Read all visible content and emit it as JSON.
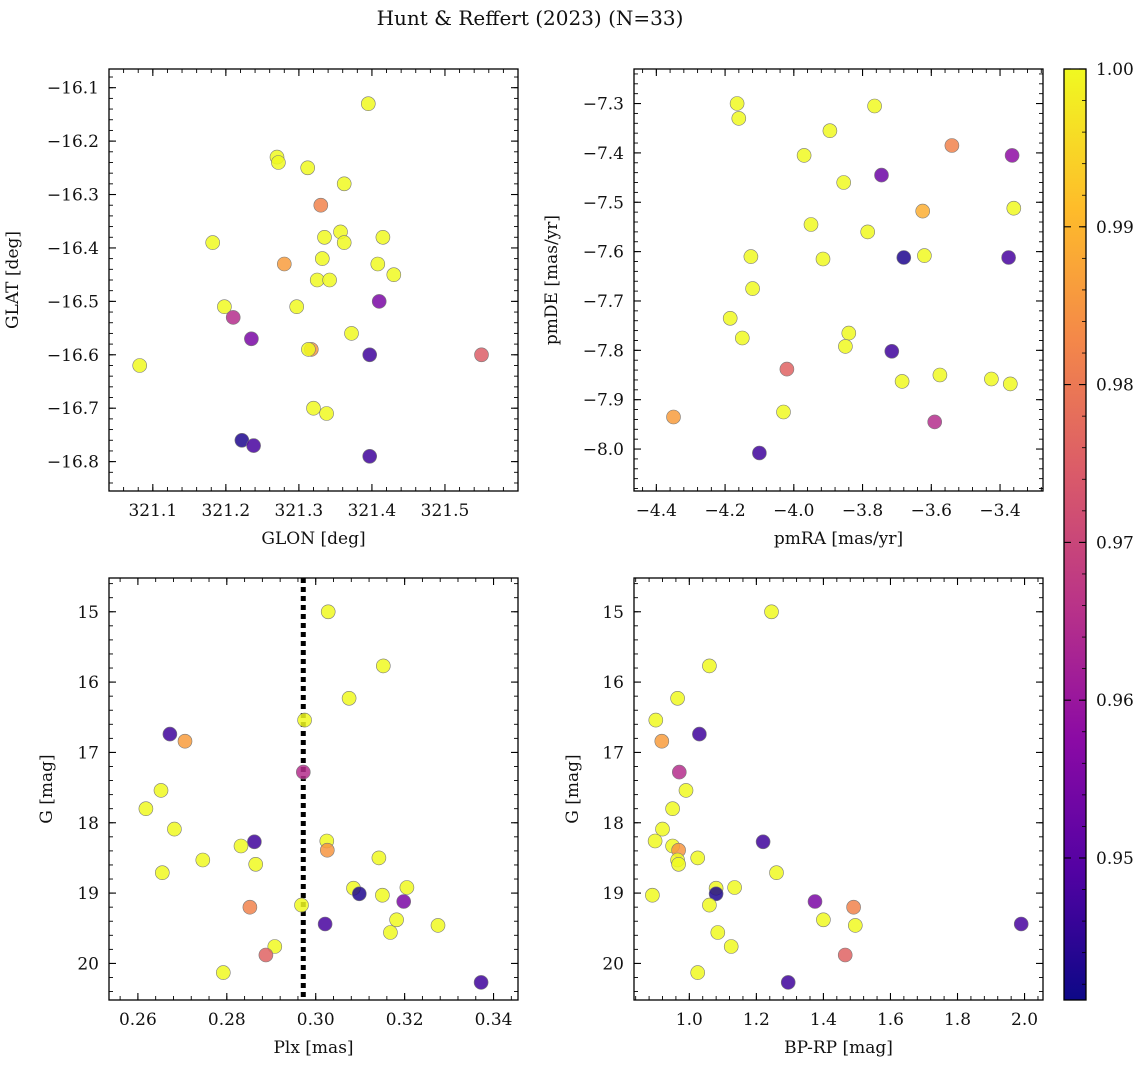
{
  "title": "Hunt & Reffert (2023) (N=33)",
  "colorbar": {
    "cmap": "plasma",
    "range": [
      0.941,
      1.0
    ],
    "ticks": [
      0.95,
      0.96,
      0.97,
      0.98,
      0.99,
      1.0
    ],
    "tick_labels": [
      "0.95",
      "0.96",
      "0.97",
      "0.98",
      "0.99",
      "1.00"
    ]
  },
  "chart_data": [
    {
      "type": "scatter",
      "title": "",
      "xlabel": "GLON [deg]",
      "ylabel": "GLAT [deg]",
      "xlim": [
        321.04,
        321.6
      ],
      "ylim": [
        -16.855,
        -16.065
      ],
      "y_inverted": false,
      "xticks": [
        321.1,
        321.2,
        321.3,
        321.4,
        321.5
      ],
      "xtick_labels": [
        "321.1",
        "321.2",
        "321.3",
        "321.4",
        "321.5"
      ],
      "yticks": [
        -16.8,
        -16.7,
        -16.6,
        -16.5,
        -16.4,
        -16.3,
        -16.2,
        -16.1
      ],
      "ytick_labels": [
        "−16.8",
        "−16.7",
        "−16.6",
        "−16.5",
        "−16.4",
        "−16.3",
        "−16.2",
        "−16.1"
      ],
      "points": [
        {
          "x": 321.395,
          "y": -16.13,
          "c": 1.0
        },
        {
          "x": 321.27,
          "y": -16.23,
          "c": 1.0
        },
        {
          "x": 321.272,
          "y": -16.24,
          "c": 1.0
        },
        {
          "x": 321.312,
          "y": -16.25,
          "c": 1.0
        },
        {
          "x": 321.362,
          "y": -16.28,
          "c": 1.0
        },
        {
          "x": 321.33,
          "y": -16.32,
          "c": 0.982
        },
        {
          "x": 321.357,
          "y": -16.37,
          "c": 1.0
        },
        {
          "x": 321.335,
          "y": -16.38,
          "c": 1.0
        },
        {
          "x": 321.415,
          "y": -16.38,
          "c": 1.0
        },
        {
          "x": 321.182,
          "y": -16.39,
          "c": 1.0
        },
        {
          "x": 321.362,
          "y": -16.39,
          "c": 1.0
        },
        {
          "x": 321.332,
          "y": -16.42,
          "c": 1.0
        },
        {
          "x": 321.28,
          "y": -16.43,
          "c": 0.986
        },
        {
          "x": 321.408,
          "y": -16.43,
          "c": 1.0
        },
        {
          "x": 321.43,
          "y": -16.45,
          "c": 1.0
        },
        {
          "x": 321.325,
          "y": -16.46,
          "c": 1.0
        },
        {
          "x": 321.342,
          "y": -16.46,
          "c": 1.0
        },
        {
          "x": 321.41,
          "y": -16.5,
          "c": 0.955
        },
        {
          "x": 321.198,
          "y": -16.51,
          "c": 1.0
        },
        {
          "x": 321.297,
          "y": -16.51,
          "c": 1.0
        },
        {
          "x": 321.21,
          "y": -16.53,
          "c": 0.965
        },
        {
          "x": 321.372,
          "y": -16.56,
          "c": 1.0
        },
        {
          "x": 321.235,
          "y": -16.57,
          "c": 0.955
        },
        {
          "x": 321.317,
          "y": -16.59,
          "c": 0.985
        },
        {
          "x": 321.313,
          "y": -16.59,
          "c": 1.0
        },
        {
          "x": 321.397,
          "y": -16.6,
          "c": 0.947
        },
        {
          "x": 321.55,
          "y": -16.6,
          "c": 0.975
        },
        {
          "x": 321.082,
          "y": -16.62,
          "c": 1.0
        },
        {
          "x": 321.32,
          "y": -16.7,
          "c": 1.0
        },
        {
          "x": 321.338,
          "y": -16.71,
          "c": 1.0
        },
        {
          "x": 321.222,
          "y": -16.76,
          "c": 0.943
        },
        {
          "x": 321.238,
          "y": -16.77,
          "c": 0.948
        },
        {
          "x": 321.397,
          "y": -16.79,
          "c": 0.947
        }
      ]
    },
    {
      "type": "scatter",
      "title": "",
      "xlabel": "pmRA [mas/yr]",
      "ylabel": "pmDE [mas/yr]",
      "xlim": [
        -4.465,
        -3.275
      ],
      "ylim": [
        -8.085,
        -7.23
      ],
      "y_inverted": false,
      "xticks": [
        -4.4,
        -4.2,
        -4.0,
        -3.8,
        -3.6,
        -3.4
      ],
      "xtick_labels": [
        "−4.4",
        "−4.2",
        "−4.0",
        "−3.8",
        "−3.6",
        "−3.4"
      ],
      "yticks": [
        -8.0,
        -7.9,
        -7.8,
        -7.7,
        -7.6,
        -7.5,
        -7.4,
        -7.3
      ],
      "ytick_labels": [
        "−8.0",
        "−7.9",
        "−7.8",
        "−7.7",
        "−7.6",
        "−7.5",
        "−7.4",
        "−7.3"
      ],
      "points": [
        {
          "x": -4.165,
          "y": -7.3,
          "c": 1.0
        },
        {
          "x": -3.765,
          "y": -7.305,
          "c": 1.0
        },
        {
          "x": -4.16,
          "y": -7.33,
          "c": 1.0
        },
        {
          "x": -3.895,
          "y": -7.355,
          "c": 1.0
        },
        {
          "x": -3.54,
          "y": -7.385,
          "c": 0.982
        },
        {
          "x": -3.97,
          "y": -7.405,
          "c": 1.0
        },
        {
          "x": -3.365,
          "y": -7.405,
          "c": 0.958
        },
        {
          "x": -3.745,
          "y": -7.445,
          "c": 0.953
        },
        {
          "x": -3.855,
          "y": -7.46,
          "c": 1.0
        },
        {
          "x": -3.36,
          "y": -7.512,
          "c": 1.0
        },
        {
          "x": -3.625,
          "y": -7.518,
          "c": 0.989
        },
        {
          "x": -3.95,
          "y": -7.545,
          "c": 1.0
        },
        {
          "x": -3.785,
          "y": -7.56,
          "c": 1.0
        },
        {
          "x": -4.125,
          "y": -7.61,
          "c": 1.0
        },
        {
          "x": -3.915,
          "y": -7.615,
          "c": 1.0
        },
        {
          "x": -3.62,
          "y": -7.608,
          "c": 1.0
        },
        {
          "x": -3.68,
          "y": -7.612,
          "c": 0.943
        },
        {
          "x": -3.375,
          "y": -7.612,
          "c": 0.948
        },
        {
          "x": -4.12,
          "y": -7.675,
          "c": 1.0
        },
        {
          "x": -4.185,
          "y": -7.735,
          "c": 1.0
        },
        {
          "x": -3.84,
          "y": -7.765,
          "c": 1.0
        },
        {
          "x": -4.15,
          "y": -7.775,
          "c": 1.0
        },
        {
          "x": -3.85,
          "y": -7.792,
          "c": 1.0
        },
        {
          "x": -3.715,
          "y": -7.802,
          "c": 0.947
        },
        {
          "x": -4.02,
          "y": -7.838,
          "c": 0.976
        },
        {
          "x": -3.575,
          "y": -7.85,
          "c": 1.0
        },
        {
          "x": -3.425,
          "y": -7.858,
          "c": 1.0
        },
        {
          "x": -3.685,
          "y": -7.863,
          "c": 1.0
        },
        {
          "x": -3.37,
          "y": -7.868,
          "c": 1.0
        },
        {
          "x": -4.03,
          "y": -7.925,
          "c": 1.0
        },
        {
          "x": -4.35,
          "y": -7.935,
          "c": 0.986
        },
        {
          "x": -3.59,
          "y": -7.945,
          "c": 0.965
        },
        {
          "x": -4.1,
          "y": -8.008,
          "c": 0.947
        }
      ]
    },
    {
      "type": "scatter",
      "title": "",
      "xlabel": "Plx [mas]",
      "ylabel": "G [mag]",
      "xlim": [
        0.2535,
        0.3455
      ],
      "ylim": [
        20.52,
        14.52
      ],
      "y_inverted": true,
      "xticks": [
        0.26,
        0.28,
        0.3,
        0.32,
        0.34
      ],
      "xtick_labels": [
        "0.26",
        "0.28",
        "0.30",
        "0.32",
        "0.34"
      ],
      "yticks": [
        15,
        16,
        17,
        18,
        19,
        20
      ],
      "ytick_labels": [
        "15",
        "16",
        "17",
        "18",
        "19",
        "20"
      ],
      "vline": {
        "x": 0.2972,
        "style": "dotted",
        "color": "#000000"
      },
      "points": [
        {
          "x": 0.3028,
          "y": 15.0,
          "c": 1.0
        },
        {
          "x": 0.3152,
          "y": 15.77,
          "c": 1.0
        },
        {
          "x": 0.3075,
          "y": 16.23,
          "c": 1.0
        },
        {
          "x": 0.2975,
          "y": 16.54,
          "c": 1.0
        },
        {
          "x": 0.2672,
          "y": 16.74,
          "c": 0.947
        },
        {
          "x": 0.2706,
          "y": 16.84,
          "c": 0.986
        },
        {
          "x": 0.2972,
          "y": 17.28,
          "c": 0.965
        },
        {
          "x": 0.2652,
          "y": 17.54,
          "c": 1.0
        },
        {
          "x": 0.2618,
          "y": 17.8,
          "c": 1.0
        },
        {
          "x": 0.2682,
          "y": 18.09,
          "c": 1.0
        },
        {
          "x": 0.3025,
          "y": 18.26,
          "c": 1.0
        },
        {
          "x": 0.2862,
          "y": 18.27,
          "c": 0.947
        },
        {
          "x": 0.2832,
          "y": 18.33,
          "c": 1.0
        },
        {
          "x": 0.3026,
          "y": 18.39,
          "c": 0.985
        },
        {
          "x": 0.3142,
          "y": 18.5,
          "c": 1.0
        },
        {
          "x": 0.2746,
          "y": 18.53,
          "c": 1.0
        },
        {
          "x": 0.2865,
          "y": 18.59,
          "c": 1.0
        },
        {
          "x": 0.2655,
          "y": 18.71,
          "c": 1.0
        },
        {
          "x": 0.3085,
          "y": 18.93,
          "c": 1.0
        },
        {
          "x": 0.3205,
          "y": 18.92,
          "c": 1.0
        },
        {
          "x": 0.3098,
          "y": 19.01,
          "c": 0.943
        },
        {
          "x": 0.315,
          "y": 19.03,
          "c": 1.0
        },
        {
          "x": 0.3198,
          "y": 19.12,
          "c": 0.955
        },
        {
          "x": 0.2968,
          "y": 19.17,
          "c": 1.0
        },
        {
          "x": 0.2852,
          "y": 19.2,
          "c": 0.982
        },
        {
          "x": 0.3182,
          "y": 19.38,
          "c": 1.0
        },
        {
          "x": 0.3021,
          "y": 19.44,
          "c": 0.948
        },
        {
          "x": 0.3275,
          "y": 19.46,
          "c": 1.0
        },
        {
          "x": 0.3168,
          "y": 19.56,
          "c": 1.0
        },
        {
          "x": 0.2908,
          "y": 19.76,
          "c": 1.0
        },
        {
          "x": 0.2888,
          "y": 19.88,
          "c": 0.976
        },
        {
          "x": 0.2792,
          "y": 20.13,
          "c": 1.0
        },
        {
          "x": 0.3372,
          "y": 20.27,
          "c": 0.947
        }
      ]
    },
    {
      "type": "scatter",
      "title": "",
      "xlabel": "BP-RP [mag]",
      "ylabel": "G [mag]",
      "xlim": [
        0.835,
        2.055
      ],
      "ylim": [
        20.52,
        14.52
      ],
      "y_inverted": true,
      "xticks": [
        1.0,
        1.2,
        1.4,
        1.6,
        1.8,
        2.0
      ],
      "xtick_labels": [
        "1.0",
        "1.2",
        "1.4",
        "1.6",
        "1.8",
        "2.0"
      ],
      "yticks": [
        15,
        16,
        17,
        18,
        19,
        20
      ],
      "ytick_labels": [
        "15",
        "16",
        "17",
        "18",
        "19",
        "20"
      ],
      "points": [
        {
          "x": 1.245,
          "y": 15.0,
          "c": 1.0
        },
        {
          "x": 1.06,
          "y": 15.77,
          "c": 1.0
        },
        {
          "x": 0.965,
          "y": 16.23,
          "c": 1.0
        },
        {
          "x": 0.9,
          "y": 16.54,
          "c": 1.0
        },
        {
          "x": 1.03,
          "y": 16.74,
          "c": 0.947
        },
        {
          "x": 0.918,
          "y": 16.84,
          "c": 0.986
        },
        {
          "x": 0.97,
          "y": 17.28,
          "c": 0.965
        },
        {
          "x": 0.99,
          "y": 17.54,
          "c": 1.0
        },
        {
          "x": 0.95,
          "y": 17.8,
          "c": 1.0
        },
        {
          "x": 0.92,
          "y": 18.09,
          "c": 1.0
        },
        {
          "x": 0.898,
          "y": 18.26,
          "c": 1.0
        },
        {
          "x": 1.22,
          "y": 18.27,
          "c": 0.947
        },
        {
          "x": 0.95,
          "y": 18.33,
          "c": 1.0
        },
        {
          "x": 0.968,
          "y": 18.39,
          "c": 0.985
        },
        {
          "x": 1.025,
          "y": 18.5,
          "c": 1.0
        },
        {
          "x": 0.965,
          "y": 18.53,
          "c": 1.0
        },
        {
          "x": 0.968,
          "y": 18.59,
          "c": 1.0
        },
        {
          "x": 1.26,
          "y": 18.71,
          "c": 1.0
        },
        {
          "x": 1.08,
          "y": 18.93,
          "c": 1.0
        },
        {
          "x": 1.135,
          "y": 18.92,
          "c": 1.0
        },
        {
          "x": 1.08,
          "y": 19.01,
          "c": 0.943
        },
        {
          "x": 0.89,
          "y": 19.03,
          "c": 1.0
        },
        {
          "x": 1.375,
          "y": 19.12,
          "c": 0.955
        },
        {
          "x": 1.06,
          "y": 19.17,
          "c": 1.0
        },
        {
          "x": 1.49,
          "y": 19.2,
          "c": 0.982
        },
        {
          "x": 1.4,
          "y": 19.38,
          "c": 1.0
        },
        {
          "x": 1.99,
          "y": 19.44,
          "c": 0.948
        },
        {
          "x": 1.495,
          "y": 19.46,
          "c": 1.0
        },
        {
          "x": 1.085,
          "y": 19.56,
          "c": 1.0
        },
        {
          "x": 1.125,
          "y": 19.76,
          "c": 1.0
        },
        {
          "x": 1.465,
          "y": 19.88,
          "c": 0.976
        },
        {
          "x": 1.025,
          "y": 20.13,
          "c": 1.0
        },
        {
          "x": 1.295,
          "y": 20.27,
          "c": 0.947
        }
      ]
    }
  ]
}
